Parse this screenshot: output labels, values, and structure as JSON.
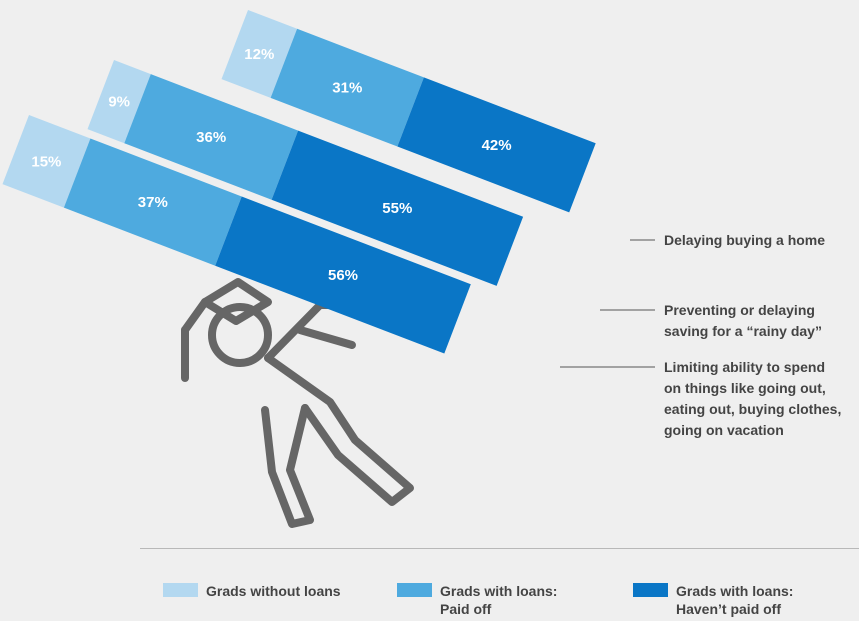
{
  "chart_data": {
    "type": "bar",
    "stacked": true,
    "categories": [
      "Delaying buying a home",
      "Preventing or delaying saving for a “rainy day”",
      "Limiting ability to spend on things like going out, eating out, buying clothes, going on vacation"
    ],
    "category_lines": [
      [
        "Delaying buying a home"
      ],
      [
        "Preventing or delaying",
        "saving for a “rainy day”"
      ],
      [
        "Limiting ability to spend",
        "on things like going out,",
        "eating out, buying clothes,",
        "going on vacation"
      ]
    ],
    "series": [
      {
        "name": "Grads without loans",
        "color": "#b3d8f0",
        "values": [
          12,
          9,
          15
        ]
      },
      {
        "name": "Grads with loans: Paid off",
        "color": "#4eaadf",
        "values": [
          31,
          36,
          37
        ]
      },
      {
        "name": "Grads with loans: Haven’t paid off",
        "color": "#0a76c6",
        "values": [
          42,
          55,
          56
        ]
      }
    ],
    "value_suffix": "%",
    "legend": [
      {
        "label": "Grads without loans",
        "color": "#b3d8f0"
      },
      {
        "label": "Grads with loans:\nPaid off",
        "color": "#4eaadf"
      },
      {
        "label": "Grads with loans:\nHaven’t paid off",
        "color": "#0a76c6"
      }
    ],
    "legend_position": "bottom",
    "figure": "graduate-carrying-debt-illustration"
  }
}
